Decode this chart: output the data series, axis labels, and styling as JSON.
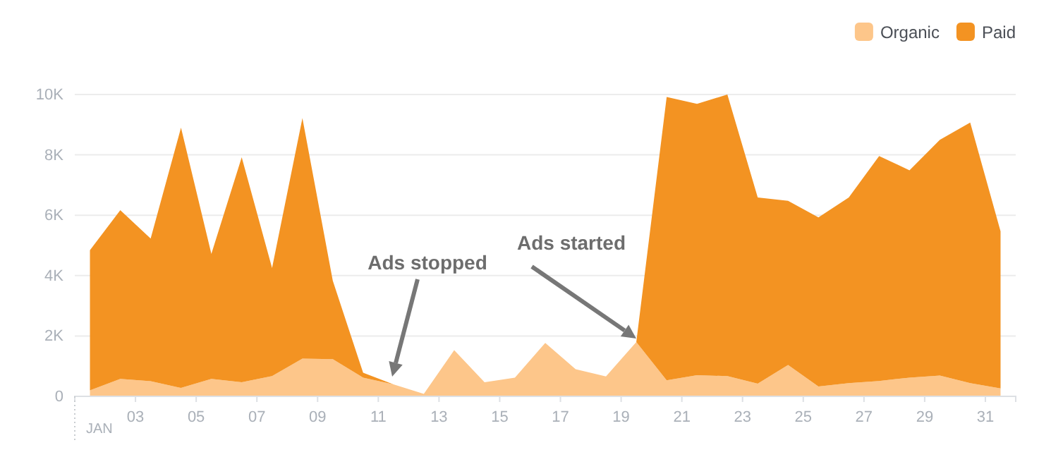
{
  "chart_data": {
    "type": "area",
    "stacked": true,
    "xlabel": "JAN",
    "x": [
      1.5,
      2.5,
      3.5,
      4.5,
      5.5,
      6.5,
      7.5,
      8.5,
      9.5,
      10.5,
      11.5,
      12.5,
      13.5,
      14.5,
      15.5,
      16.5,
      17.5,
      18.5,
      19.5,
      20.5,
      21.5,
      22.5,
      23.5,
      24.5,
      25.5,
      26.5,
      27.5,
      28.5,
      29.5,
      30.5,
      31.5
    ],
    "series": [
      {
        "name": "Organic",
        "color": "#fdc68a",
        "values": [
          200,
          580,
          500,
          280,
          580,
          470,
          670,
          1250,
          1230,
          620,
          400,
          80,
          1530,
          470,
          620,
          1770,
          900,
          660,
          1800,
          530,
          700,
          670,
          420,
          1040,
          330,
          440,
          510,
          620,
          690,
          440,
          260
        ]
      },
      {
        "name": "Paid",
        "color": "#f39322",
        "values": [
          4640,
          5590,
          4730,
          8620,
          4140,
          7450,
          3580,
          7970,
          2600,
          160,
          0,
          0,
          0,
          0,
          0,
          0,
          0,
          0,
          0,
          9390,
          8990,
          9330,
          6170,
          5440,
          5600,
          6150,
          7450,
          6870,
          7810,
          8630,
          5210
        ]
      }
    ],
    "xlim": [
      1,
      32
    ],
    "xticks": [
      {
        "value": 3,
        "label": "03"
      },
      {
        "value": 5,
        "label": "05"
      },
      {
        "value": 7,
        "label": "07"
      },
      {
        "value": 9,
        "label": "09"
      },
      {
        "value": 11,
        "label": "11"
      },
      {
        "value": 13,
        "label": "13"
      },
      {
        "value": 15,
        "label": "15"
      },
      {
        "value": 17,
        "label": "17"
      },
      {
        "value": 19,
        "label": "19"
      },
      {
        "value": 21,
        "label": "21"
      },
      {
        "value": 23,
        "label": "23"
      },
      {
        "value": 25,
        "label": "25"
      },
      {
        "value": 27,
        "label": "27"
      },
      {
        "value": 29,
        "label": "29"
      },
      {
        "value": 31,
        "label": "31"
      }
    ],
    "ylim": [
      0,
      10000
    ],
    "yticks": [
      0,
      {
        "value": 2000,
        "label": "2K"
      },
      {
        "value": 4000,
        "label": "4K"
      },
      {
        "value": 6000,
        "label": "6K"
      },
      {
        "value": 8000,
        "label": "8K"
      },
      {
        "value": 10000,
        "label": "10K"
      }
    ],
    "grid": "y",
    "legend": "top right",
    "annotations": [
      "Ads stopped",
      "Ads started"
    ]
  }
}
